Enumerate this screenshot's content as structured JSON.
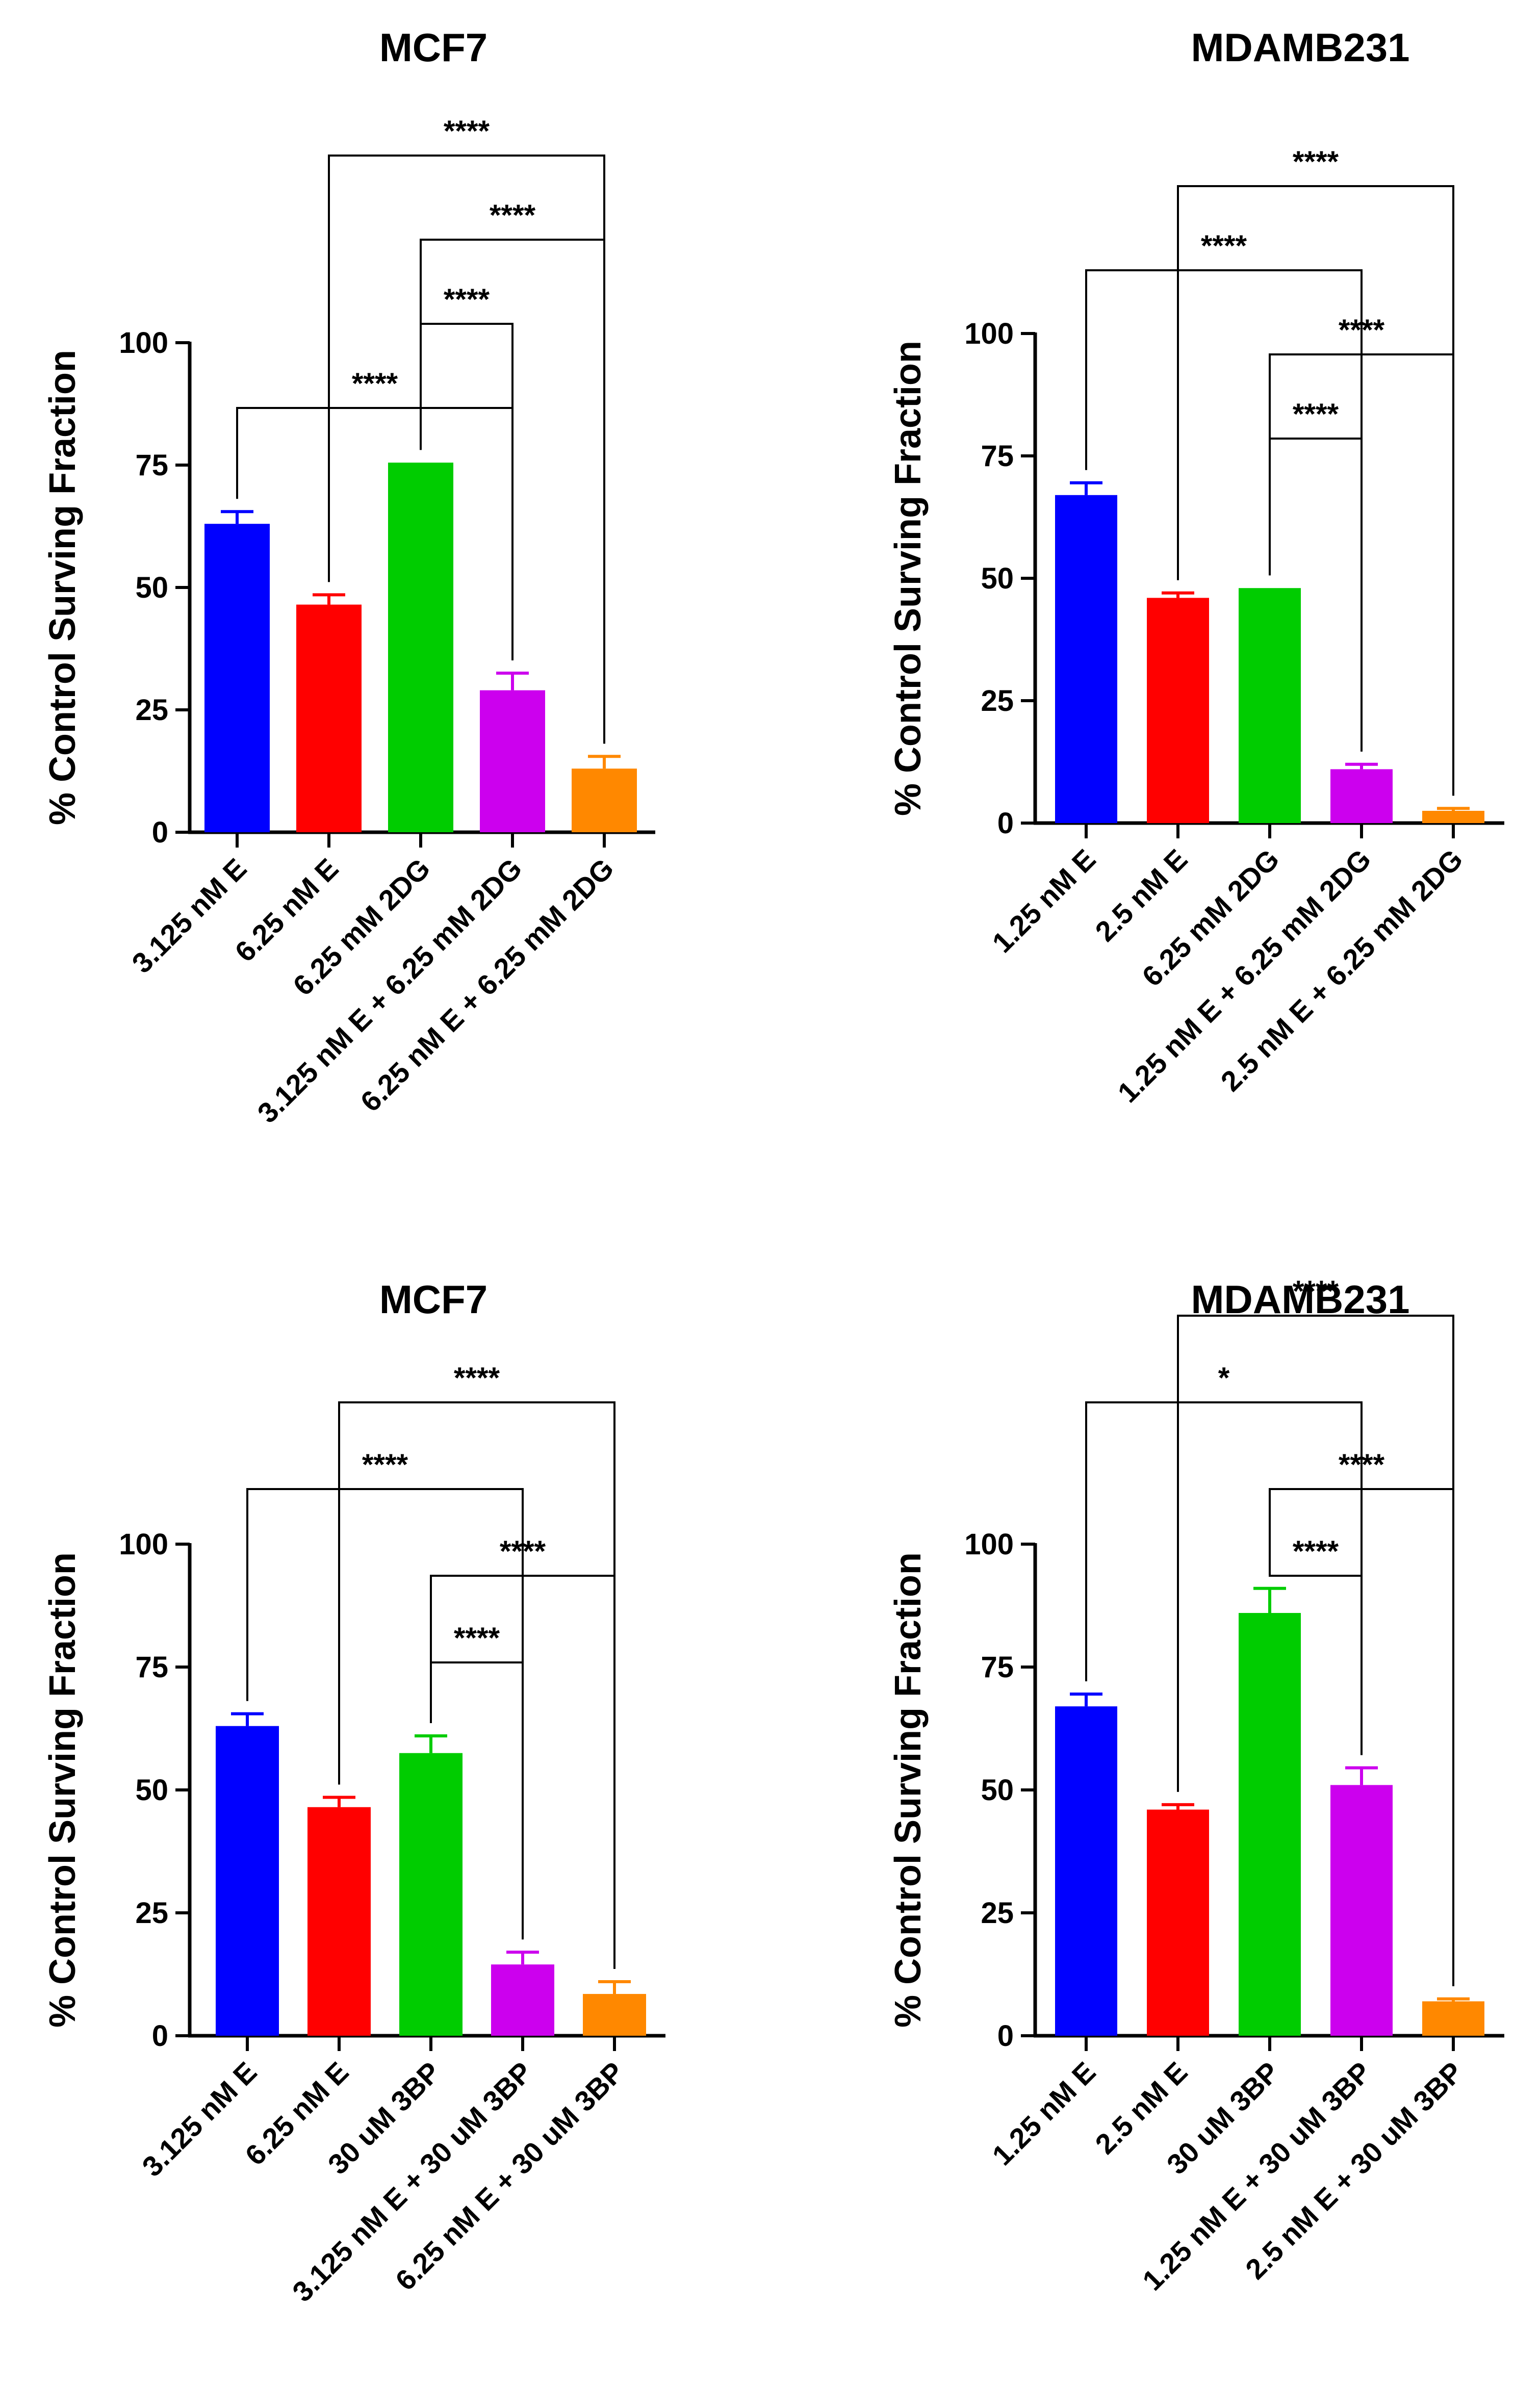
{
  "figure": {
    "description_free": true
  },
  "colors": {
    "blue": "#0000ff",
    "red": "#ff0000",
    "green": "#00cc00",
    "magenta": "#cc00ee",
    "orange": "#ff8800",
    "axis": "#000000"
  },
  "chart_data": [
    {
      "type": "bar",
      "title": "MCF7",
      "xlabel": "",
      "ylabel": "% Control Surving Fraction",
      "ylim": [
        0,
        100
      ],
      "yticks": [
        "0",
        "25",
        "50",
        "75",
        "100"
      ],
      "grid": false,
      "categories": [
        "3.125 nM E",
        "6.25 nM E",
        "6.25 mM 2DG",
        "3.125 nM E + 6.25 mM 2DG",
        "6.25 nM E + 6.25 mM 2DG"
      ],
      "values": [
        63,
        46.5,
        75.5,
        29,
        13
      ],
      "errors": [
        2.5,
        2,
        0,
        3.5,
        2.5
      ],
      "bar_colors": [
        "blue",
        "red",
        "green",
        "magenta",
        "orange"
      ],
      "comparisons": [
        {
          "from": 0,
          "to": 3,
          "label": "****",
          "level": 0
        },
        {
          "from": 2,
          "to": 3,
          "label": "****",
          "level": 1
        },
        {
          "from": 2,
          "to": 4,
          "label": "****",
          "level": 2
        },
        {
          "from": 1,
          "to": 4,
          "label": "****",
          "level": 3
        }
      ]
    },
    {
      "type": "bar",
      "title": "MDAMB231",
      "xlabel": "",
      "ylabel": "% Control Surving Fraction",
      "ylim": [
        0,
        100
      ],
      "yticks": [
        "0",
        "25",
        "50",
        "75",
        "100"
      ],
      "grid": false,
      "categories": [
        "1.25 nM E",
        "2.5 nM E",
        "6.25 mM 2DG",
        "1.25 nM E + 6.25 mM 2DG",
        "2.5 nM E + 6.25 mM 2DG"
      ],
      "values": [
        67,
        46,
        48,
        11,
        2.5
      ],
      "errors": [
        2.5,
        1,
        0,
        1,
        0.5
      ],
      "bar_colors": [
        "blue",
        "red",
        "green",
        "magenta",
        "orange"
      ],
      "comparisons": [
        {
          "from": 2,
          "to": 3,
          "label": "****",
          "level": 0
        },
        {
          "from": 2,
          "to": 4,
          "label": "****",
          "level": 1
        },
        {
          "from": 0,
          "to": 3,
          "label": "****",
          "level": 2
        },
        {
          "from": 1,
          "to": 4,
          "label": "****",
          "level": 3
        }
      ]
    },
    {
      "type": "bar",
      "title": "MCF7",
      "xlabel": "",
      "ylabel": "% Control Surving Fraction",
      "ylim": [
        0,
        100
      ],
      "yticks": [
        "0",
        "25",
        "50",
        "75",
        "100"
      ],
      "grid": false,
      "categories": [
        "3.125 nM E",
        "6.25 nM E",
        "30 uM 3BP",
        "3.125 nM E + 30 uM 3BP",
        "6.25 nM E + 30 uM 3BP"
      ],
      "values": [
        63,
        46.5,
        57.5,
        14.5,
        8.5
      ],
      "errors": [
        2.5,
        2,
        3.5,
        2.5,
        2.5
      ],
      "bar_colors": [
        "blue",
        "red",
        "green",
        "magenta",
        "orange"
      ],
      "comparisons": [
        {
          "from": 2,
          "to": 3,
          "label": "****",
          "level": 0
        },
        {
          "from": 2,
          "to": 4,
          "label": "****",
          "level": 1
        },
        {
          "from": 0,
          "to": 3,
          "label": "****",
          "level": 2
        },
        {
          "from": 1,
          "to": 4,
          "label": "****",
          "level": 3
        }
      ]
    },
    {
      "type": "bar",
      "title": "MDAMB231",
      "xlabel": "",
      "ylabel": "% Control Surving Fraction",
      "ylim": [
        0,
        100
      ],
      "yticks": [
        "0",
        "25",
        "50",
        "75",
        "100"
      ],
      "grid": false,
      "categories": [
        "1.25 nM E",
        "2.5 nM E",
        "30 uM 3BP",
        "1.25 nM E + 30 uM 3BP",
        "2.5 nM E + 30 uM 3BP"
      ],
      "values": [
        67,
        46,
        86,
        51,
        7
      ],
      "errors": [
        2.5,
        1,
        5,
        3.5,
        0.5
      ],
      "bar_colors": [
        "blue",
        "red",
        "green",
        "magenta",
        "orange"
      ],
      "comparisons": [
        {
          "from": 2,
          "to": 3,
          "label": "****",
          "level": 0
        },
        {
          "from": 2,
          "to": 4,
          "label": "****",
          "level": 1
        },
        {
          "from": 0,
          "to": 3,
          "label": "*",
          "level": 2
        },
        {
          "from": 1,
          "to": 4,
          "label": "****",
          "level": 3
        }
      ]
    }
  ]
}
